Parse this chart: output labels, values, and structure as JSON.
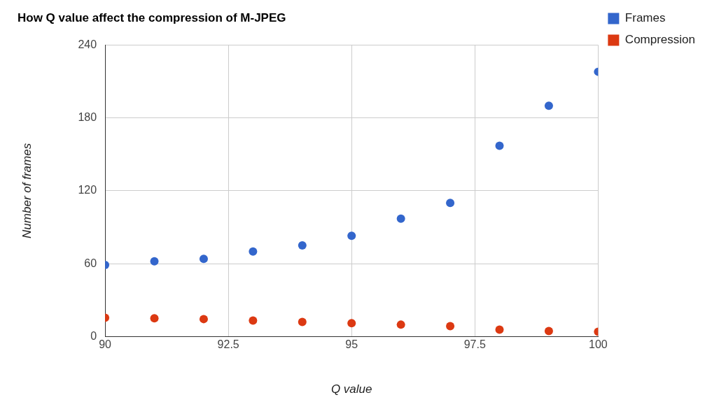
{
  "chart_data": {
    "type": "scatter",
    "title": "How Q value affect the compression of M-JPEG",
    "xlabel": "Q value",
    "ylabel": "Number of frames",
    "x": [
      90,
      91,
      92,
      93,
      94,
      95,
      96,
      97,
      98,
      99,
      100
    ],
    "series": [
      {
        "name": "Frames",
        "color": "#3366cc",
        "values": [
          59,
          62,
          64,
          70,
          75,
          83,
          97,
          110,
          157,
          190,
          218
        ]
      },
      {
        "name": "Compression",
        "color": "#dc3912",
        "values": [
          15.5,
          15,
          14.4,
          13.2,
          12,
          11,
          9.8,
          8.6,
          5.7,
          4.6,
          4
        ]
      }
    ],
    "xlim": [
      90,
      100
    ],
    "xticks": [
      90,
      92.5,
      95,
      97.5,
      100
    ],
    "ylim": [
      0,
      240
    ],
    "yticks": [
      0,
      60,
      120,
      180,
      240
    ],
    "grid": true,
    "legend": "right",
    "marker": "circle"
  }
}
